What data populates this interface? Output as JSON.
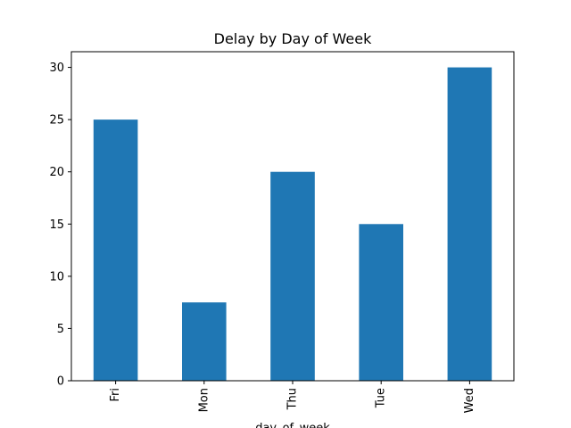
{
  "chart_data": {
    "type": "bar",
    "title": "Delay by Day of Week",
    "xlabel": "day_of_week",
    "ylabel": "",
    "categories": [
      "Fri",
      "Mon",
      "Thu",
      "Tue",
      "Wed"
    ],
    "values": [
      25,
      7.5,
      20,
      15,
      30
    ],
    "ylim": [
      0,
      31.5
    ],
    "yticks": [
      0,
      5,
      10,
      15,
      20,
      25,
      30
    ],
    "grid": false,
    "legend": "none",
    "bar_color": "#1f77b4"
  }
}
